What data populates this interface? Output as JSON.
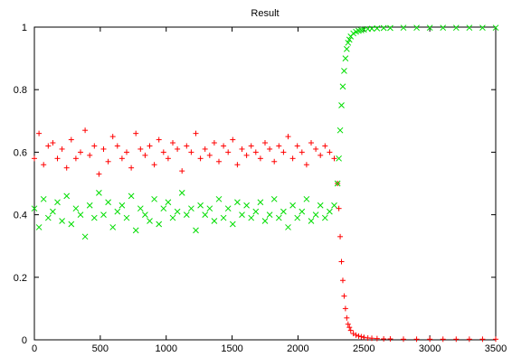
{
  "chart_data": {
    "type": "scatter",
    "title": "Result",
    "xlabel": "",
    "ylabel": "",
    "xlim": [
      0,
      3500
    ],
    "ylim": [
      0,
      1
    ],
    "grid": false,
    "legend": "none",
    "x_ticks": [
      "0",
      "500",
      "1000",
      "1500",
      "2000",
      "2500",
      "3000",
      "3500"
    ],
    "y_ticks": [
      "0",
      "0.2",
      "0.4",
      "0.6",
      "0.8",
      "1"
    ],
    "series": [
      {
        "marker": "plus",
        "color": "#ff0000",
        "x": [
          0,
          35,
          70,
          105,
          140,
          175,
          210,
          245,
          280,
          315,
          350,
          385,
          420,
          455,
          490,
          525,
          560,
          595,
          630,
          665,
          700,
          735,
          770,
          805,
          840,
          875,
          910,
          945,
          980,
          1015,
          1050,
          1085,
          1120,
          1155,
          1190,
          1225,
          1260,
          1295,
          1330,
          1365,
          1400,
          1435,
          1470,
          1505,
          1540,
          1575,
          1610,
          1645,
          1680,
          1715,
          1750,
          1785,
          1820,
          1855,
          1890,
          1925,
          1960,
          1995,
          2030,
          2065,
          2100,
          2135,
          2170,
          2205,
          2240,
          2275,
          2300,
          2310,
          2320,
          2330,
          2340,
          2350,
          2360,
          2370,
          2380,
          2390,
          2400,
          2420,
          2440,
          2460,
          2480,
          2500,
          2530,
          2560,
          2600,
          2650,
          2700,
          2800,
          2900,
          3000,
          3100,
          3200,
          3300,
          3400,
          3500
        ],
        "values": [
          0.58,
          0.66,
          0.56,
          0.62,
          0.63,
          0.58,
          0.61,
          0.55,
          0.64,
          0.58,
          0.6,
          0.67,
          0.59,
          0.62,
          0.53,
          0.61,
          0.57,
          0.65,
          0.62,
          0.58,
          0.6,
          0.55,
          0.66,
          0.61,
          0.59,
          0.62,
          0.56,
          0.64,
          0.6,
          0.58,
          0.63,
          0.61,
          0.54,
          0.62,
          0.6,
          0.66,
          0.58,
          0.61,
          0.59,
          0.63,
          0.57,
          0.62,
          0.6,
          0.64,
          0.56,
          0.61,
          0.59,
          0.62,
          0.6,
          0.58,
          0.63,
          0.61,
          0.57,
          0.62,
          0.6,
          0.65,
          0.58,
          0.62,
          0.6,
          0.56,
          0.63,
          0.61,
          0.59,
          0.62,
          0.6,
          0.58,
          0.5,
          0.42,
          0.33,
          0.25,
          0.19,
          0.14,
          0.1,
          0.07,
          0.05,
          0.04,
          0.03,
          0.02,
          0.015,
          0.012,
          0.01,
          0.008,
          0.006,
          0.005,
          0.004,
          0.003,
          0.003,
          0.002,
          0.002,
          0.002,
          0.002,
          0.002,
          0.002,
          0.002,
          0.002
        ]
      },
      {
        "marker": "cross",
        "color": "#00dd00",
        "x": [
          0,
          35,
          70,
          105,
          140,
          175,
          210,
          245,
          280,
          315,
          350,
          385,
          420,
          455,
          490,
          525,
          560,
          595,
          630,
          665,
          700,
          735,
          770,
          805,
          840,
          875,
          910,
          945,
          980,
          1015,
          1050,
          1085,
          1120,
          1155,
          1190,
          1225,
          1260,
          1295,
          1330,
          1365,
          1400,
          1435,
          1470,
          1505,
          1540,
          1575,
          1610,
          1645,
          1680,
          1715,
          1750,
          1785,
          1820,
          1855,
          1890,
          1925,
          1960,
          1995,
          2030,
          2065,
          2100,
          2135,
          2170,
          2205,
          2240,
          2275,
          2300,
          2310,
          2320,
          2330,
          2340,
          2350,
          2360,
          2370,
          2380,
          2390,
          2400,
          2420,
          2440,
          2460,
          2480,
          2500,
          2530,
          2560,
          2600,
          2650,
          2700,
          2800,
          2900,
          3000,
          3100,
          3200,
          3300,
          3400,
          3500
        ],
        "values": [
          0.42,
          0.36,
          0.45,
          0.39,
          0.41,
          0.44,
          0.38,
          0.46,
          0.37,
          0.42,
          0.4,
          0.33,
          0.43,
          0.39,
          0.47,
          0.4,
          0.44,
          0.36,
          0.41,
          0.43,
          0.39,
          0.46,
          0.35,
          0.42,
          0.4,
          0.38,
          0.45,
          0.37,
          0.42,
          0.44,
          0.39,
          0.41,
          0.47,
          0.4,
          0.42,
          0.35,
          0.43,
          0.4,
          0.42,
          0.38,
          0.45,
          0.39,
          0.42,
          0.37,
          0.44,
          0.4,
          0.43,
          0.39,
          0.41,
          0.44,
          0.38,
          0.4,
          0.45,
          0.39,
          0.41,
          0.36,
          0.43,
          0.39,
          0.41,
          0.45,
          0.38,
          0.4,
          0.43,
          0.39,
          0.41,
          0.43,
          0.5,
          0.58,
          0.67,
          0.75,
          0.81,
          0.86,
          0.9,
          0.93,
          0.95,
          0.96,
          0.97,
          0.98,
          0.985,
          0.988,
          0.99,
          0.992,
          0.994,
          0.995,
          0.996,
          0.997,
          0.997,
          0.998,
          0.998,
          0.998,
          0.998,
          0.998,
          0.998,
          0.998,
          0.998
        ]
      }
    ]
  }
}
